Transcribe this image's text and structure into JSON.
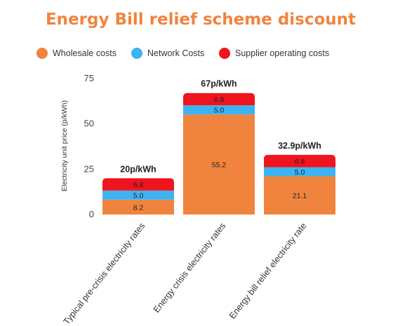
{
  "colors": {
    "wholesale": "#F0843F",
    "network": "#3CB4F2",
    "supplier": "#F0141E",
    "title": "#F0843F"
  },
  "chart_data": {
    "type": "bar",
    "stacked": true,
    "title": "Energy Bill relief scheme discount",
    "ylabel": "Electricity unit price (p/kWh)",
    "xlabel": "",
    "ylim": [
      0,
      75
    ],
    "yticks": [
      0,
      25,
      50,
      75
    ],
    "legend_position": "top",
    "grid": false,
    "categories": [
      "Typical pre-crisis electricity rates",
      "Energy crisis electricity rates",
      "Energy bill relief electricity rate"
    ],
    "totals": [
      "20p/kWh",
      "67p/kWh",
      "32.9p/kWh"
    ],
    "series": [
      {
        "name": "Wholesale costs",
        "values": [
          8.2,
          55.2,
          21.1
        ],
        "labels": [
          "8.2",
          "55.2",
          "21.1"
        ],
        "color": "#F0843F"
      },
      {
        "name": "Network Costs",
        "values": [
          5.0,
          5.0,
          5.0
        ],
        "labels": [
          "5.0",
          "5.0",
          "5.0"
        ],
        "color": "#3CB4F2"
      },
      {
        "name": "Supplier operating costs",
        "values": [
          6.8,
          6.8,
          6.8
        ],
        "labels": [
          "6.8",
          "6.8",
          "6.8"
        ],
        "color": "#F0141E"
      }
    ]
  }
}
